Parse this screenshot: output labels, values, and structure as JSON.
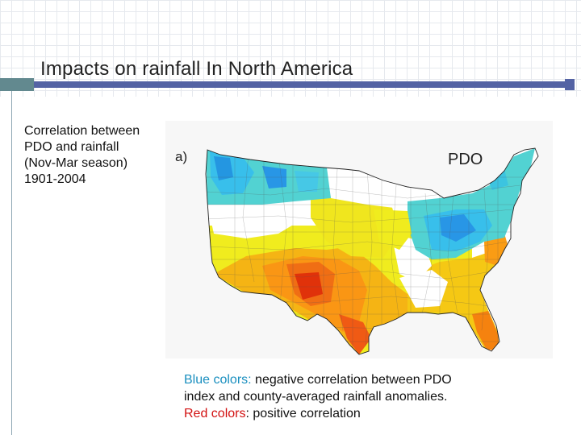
{
  "slide": {
    "title": "Impacts on rainfall In North America",
    "caption_lines": [
      "Correlation between",
      "PDO and rainfall",
      "(Nov-Mar season)",
      "1901-2004"
    ]
  },
  "map": {
    "panel_label": "a)",
    "index_label": "PDO",
    "region": "Contiguous United States",
    "colors": {
      "strong_negative": "#28a3e6",
      "negative": "#38bfeb",
      "weak_negative": "#52d2d2",
      "neutral": "#ffffff",
      "weak_positive": "#f0f01e",
      "positive": "#f5c814",
      "moderate_positive": "#fa9c14",
      "strong_positive": "#f06414",
      "very_strong_positive": "#e02a0a"
    }
  },
  "legend_text": {
    "blue_label": "Blue colors:",
    "blue_desc_line1": " negative correlation between PDO",
    "blue_desc_line2": "index and county-averaged rainfall anomalies.",
    "red_label": "Red colors",
    "red_desc": ": positive correlation"
  }
}
